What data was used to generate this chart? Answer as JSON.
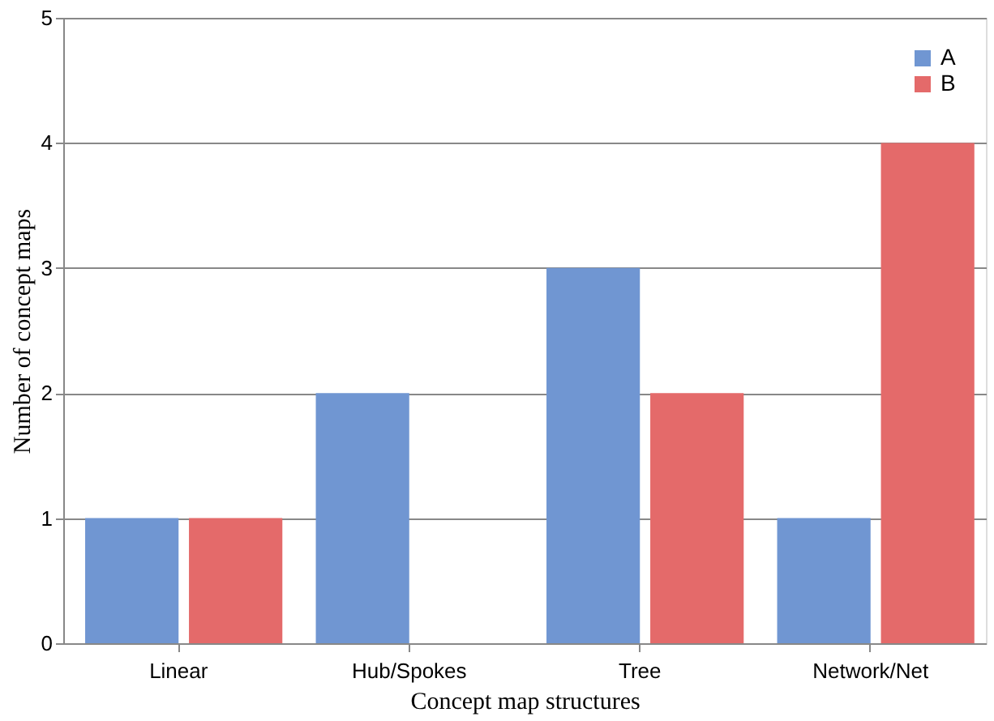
{
  "chart_data": {
    "type": "bar",
    "xlabel": "Concept map structures",
    "ylabel": "Number of concept maps",
    "categories": [
      "Linear",
      "Hub/Spokes",
      "Tree",
      "Network/Net"
    ],
    "series": [
      {
        "name": "A",
        "color": "#7096d2",
        "values": [
          1,
          2,
          3,
          1
        ]
      },
      {
        "name": "B",
        "color": "#e46a6a",
        "values": [
          1,
          0,
          2,
          4
        ]
      }
    ],
    "ylim": [
      0,
      5
    ],
    "yticks": [
      0,
      1,
      2,
      3,
      4,
      5
    ],
    "grid": "y",
    "legend": "top right"
  }
}
